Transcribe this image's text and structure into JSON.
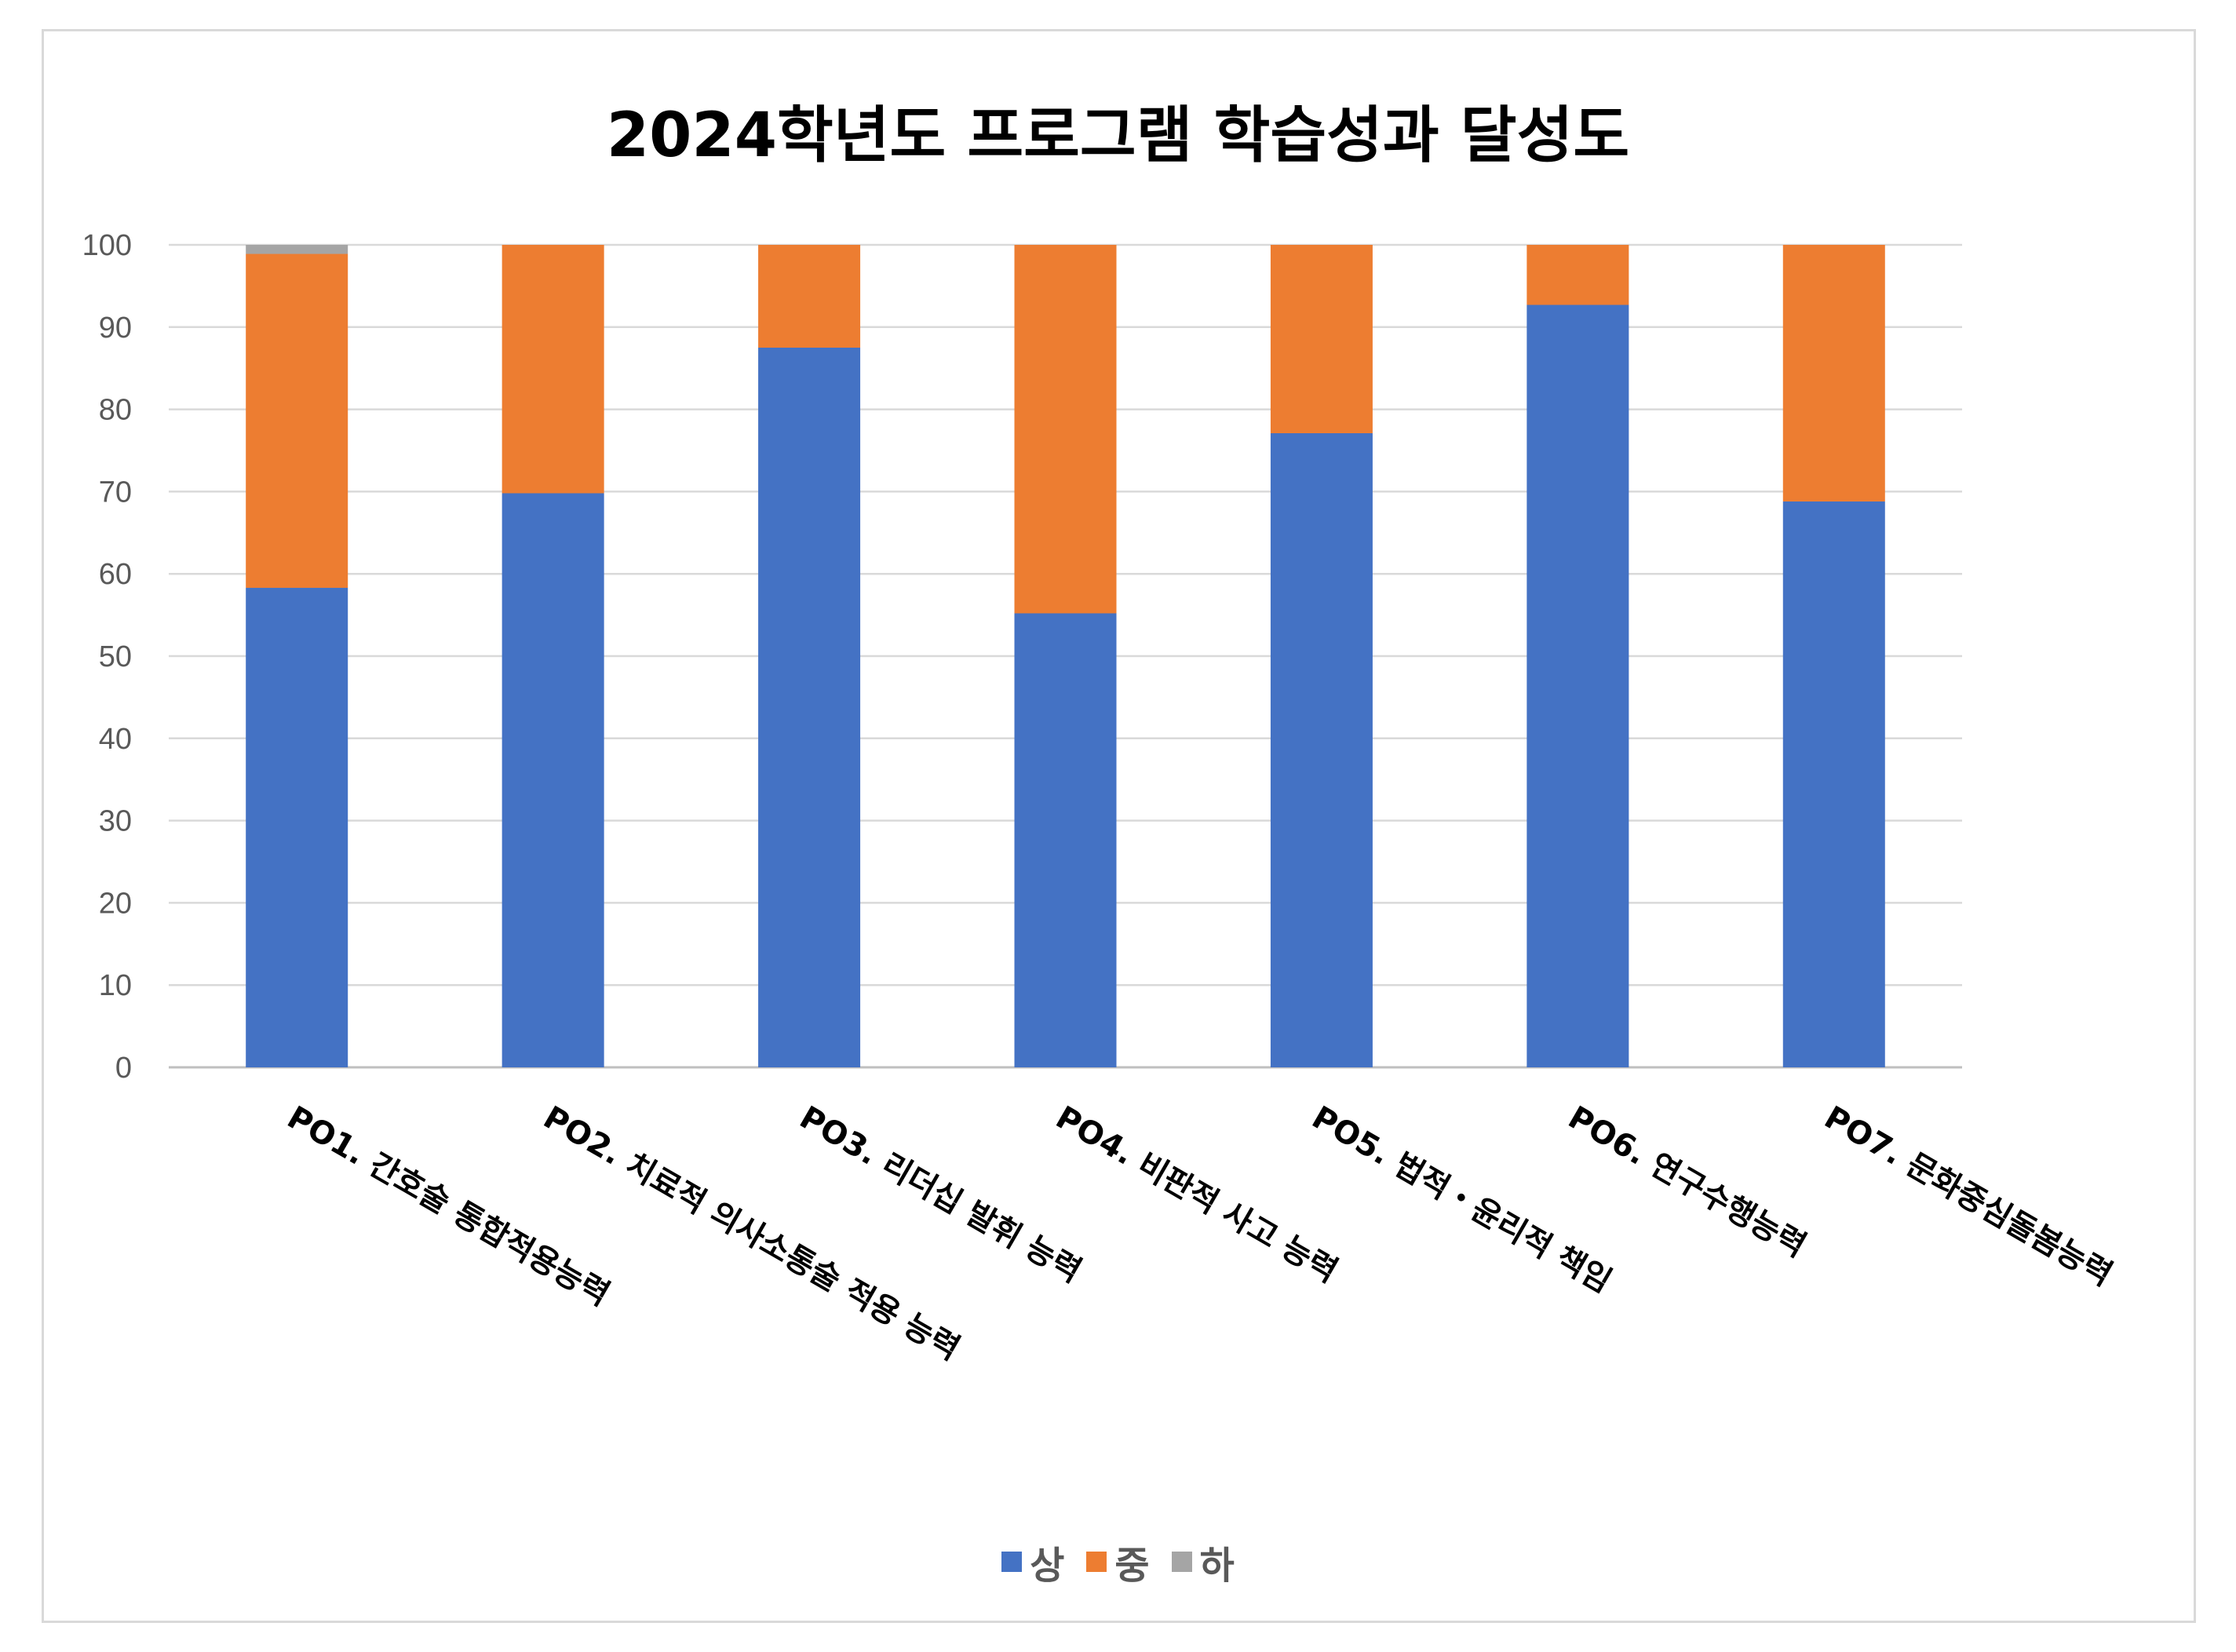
{
  "chart_data": {
    "type": "bar",
    "stacked": true,
    "title": "2024학년도 프로그램 학습성과 달성도",
    "categories": [
      "PO1. 간호술 통합적용능력",
      "PO2. 치료적 의사소통술 적용 능력",
      "PO3. 리더십 발휘 능력",
      "PO4. 비판적 사고 능력",
      "PO5. 법적・윤리적 책임",
      "PO6. 연구수행능력",
      "PO7. 문화중심돌봄능력"
    ],
    "series": [
      {
        "name": "상",
        "color": "#4472c4",
        "values": [
          58.3,
          69.8,
          87.5,
          55.2,
          77.1,
          92.7,
          68.8
        ]
      },
      {
        "name": "중",
        "color": "#ed7d31",
        "values": [
          40.6,
          30.2,
          12.5,
          44.8,
          22.9,
          7.3,
          31.2
        ]
      },
      {
        "name": "하",
        "color": "#a5a5a5",
        "values": [
          1.1,
          0,
          0,
          0,
          0,
          0,
          0
        ]
      }
    ],
    "ylim": [
      0,
      100
    ],
    "yticks": [
      0,
      10,
      20,
      30,
      40,
      50,
      60,
      70,
      80,
      90,
      100
    ],
    "grid": true,
    "legend_position": "bottom"
  }
}
